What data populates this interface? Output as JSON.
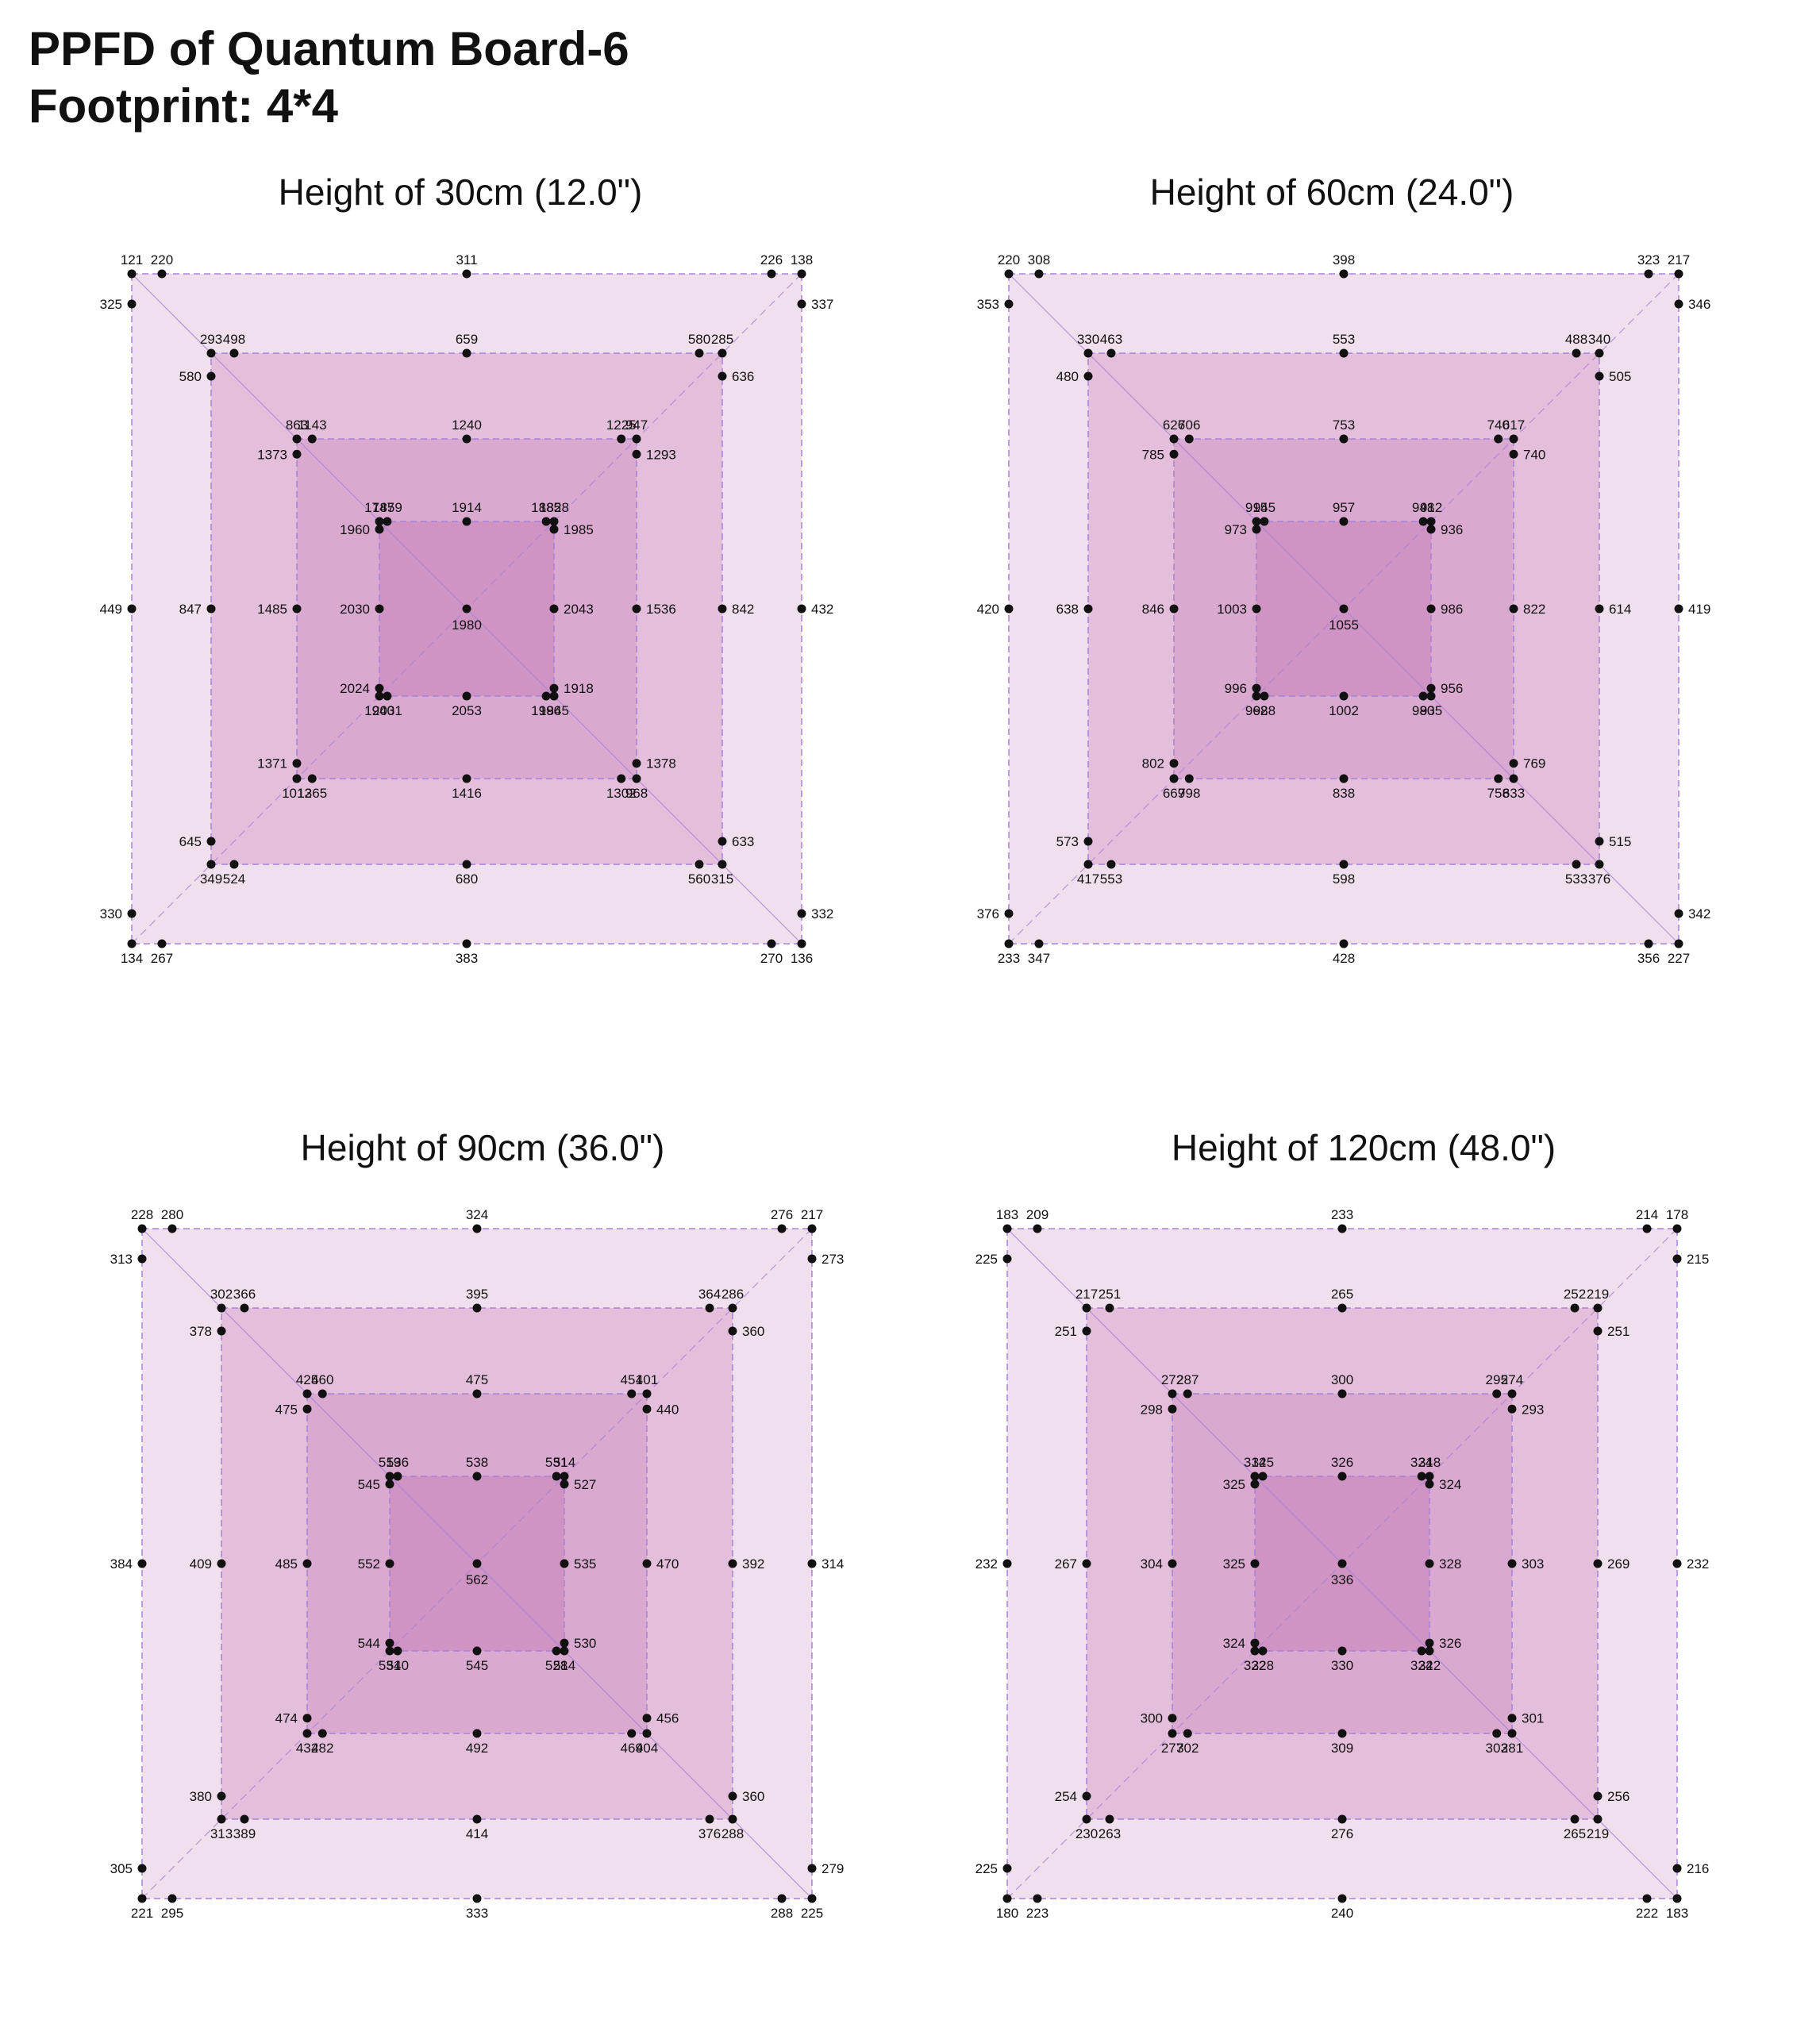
{
  "title_line1": "PPFD of Quantum Board-6",
  "title_line2": "Footprint: 4*4",
  "colors": {
    "ring1": "#f0dfec",
    "ring2": "#e4bfdb",
    "ring3": "#d9a9cf",
    "ring4": "#cf93c4",
    "border": "#a882d8",
    "dot": "#111111"
  },
  "chart_data": [
    {
      "type": "scatter",
      "title": "Height of 30cm (12.0\")",
      "rings": [
        {
          "corners": [
            121,
            138,
            136,
            134
          ],
          "top": [
            220,
            311,
            226
          ],
          "right": [
            337,
            432,
            332
          ],
          "bottom": [
            267,
            383,
            270
          ],
          "left": [
            325,
            449,
            330
          ]
        },
        {
          "corners": [
            293,
            285,
            315,
            349
          ],
          "top": [
            498,
            659,
            580
          ],
          "right": [
            636,
            842,
            633
          ],
          "bottom": [
            524,
            680,
            560
          ],
          "left": [
            580,
            847,
            645
          ]
        },
        {
          "corners": [
            863,
            947,
            968,
            1012
          ],
          "top": [
            1143,
            1240,
            1225
          ],
          "right": [
            1293,
            1536,
            1378
          ],
          "bottom": [
            1365,
            1416,
            1302
          ],
          "left": [
            1373,
            1485,
            1371
          ]
        },
        {
          "corners": [
            1747,
            1828,
            1845,
            1940
          ],
          "top": [
            1859,
            1914,
            1885
          ],
          "right": [
            1985,
            2043,
            1918
          ],
          "bottom": [
            2031,
            2053,
            1996
          ],
          "left": [
            1960,
            2030,
            2024
          ]
        }
      ],
      "center": 1980
    },
    {
      "type": "scatter",
      "title": "Height of 60cm (24.0\")",
      "rings": [
        {
          "corners": [
            220,
            217,
            227,
            233
          ],
          "top": [
            308,
            398,
            323
          ],
          "right": [
            346,
            419,
            342
          ],
          "bottom": [
            347,
            428,
            356
          ],
          "left": [
            353,
            420,
            376
          ]
        },
        {
          "corners": [
            330,
            340,
            376,
            417
          ],
          "top": [
            463,
            553,
            488
          ],
          "right": [
            505,
            614,
            515
          ],
          "bottom": [
            553,
            598,
            533
          ],
          "left": [
            480,
            638,
            573
          ]
        },
        {
          "corners": [
            626,
            617,
            633,
            669
          ],
          "top": [
            706,
            753,
            740
          ],
          "right": [
            740,
            822,
            769
          ],
          "bottom": [
            798,
            838,
            758
          ],
          "left": [
            785,
            846,
            802
          ]
        },
        {
          "corners": [
            915,
            912,
            935,
            962
          ],
          "top": [
            945,
            957,
            948
          ],
          "right": [
            936,
            986,
            956
          ],
          "bottom": [
            988,
            1002,
            980
          ],
          "left": [
            973,
            1003,
            996
          ]
        }
      ],
      "center": 1055
    },
    {
      "type": "scatter",
      "title": "Height of 90cm (36.0\")",
      "rings": [
        {
          "corners": [
            228,
            217,
            225,
            221
          ],
          "top": [
            280,
            324,
            276
          ],
          "right": [
            273,
            314,
            279
          ],
          "bottom": [
            295,
            333,
            288
          ],
          "left": [
            313,
            384,
            305
          ]
        },
        {
          "corners": [
            302,
            286,
            288,
            313
          ],
          "top": [
            366,
            395,
            364
          ],
          "right": [
            360,
            392,
            360
          ],
          "bottom": [
            389,
            414,
            376
          ],
          "left": [
            378,
            409,
            380
          ]
        },
        {
          "corners": [
            425,
            401,
            404,
            432
          ],
          "top": [
            460,
            475,
            451
          ],
          "right": [
            440,
            470,
            456
          ],
          "bottom": [
            482,
            492,
            469
          ],
          "left": [
            475,
            485,
            474
          ]
        },
        {
          "corners": [
            519,
            514,
            514,
            531
          ],
          "top": [
            536,
            538,
            531
          ],
          "right": [
            527,
            535,
            530
          ],
          "bottom": [
            540,
            545,
            528
          ],
          "left": [
            545,
            552,
            544
          ]
        }
      ],
      "center": 562
    },
    {
      "type": "scatter",
      "title": "Height of 120cm (48.0\")",
      "rings": [
        {
          "corners": [
            183,
            178,
            183,
            180
          ],
          "top": [
            209,
            233,
            214
          ],
          "right": [
            215,
            232,
            216
          ],
          "bottom": [
            223,
            240,
            222
          ],
          "left": [
            225,
            232,
            225
          ]
        },
        {
          "corners": [
            217,
            219,
            219,
            230
          ],
          "top": [
            251,
            265,
            252
          ],
          "right": [
            251,
            269,
            256
          ],
          "bottom": [
            263,
            276,
            265
          ],
          "left": [
            251,
            267,
            254
          ]
        },
        {
          "corners": [
            272,
            274,
            281,
            277
          ],
          "top": [
            287,
            300,
            295
          ],
          "right": [
            293,
            303,
            301
          ],
          "bottom": [
            302,
            309,
            303
          ],
          "left": [
            298,
            304,
            300
          ]
        },
        {
          "corners": [
            314,
            318,
            322,
            322
          ],
          "top": [
            325,
            326,
            324
          ],
          "right": [
            324,
            328,
            326
          ],
          "bottom": [
            328,
            330,
            324
          ],
          "left": [
            325,
            325,
            324
          ]
        }
      ],
      "center": 336
    }
  ]
}
